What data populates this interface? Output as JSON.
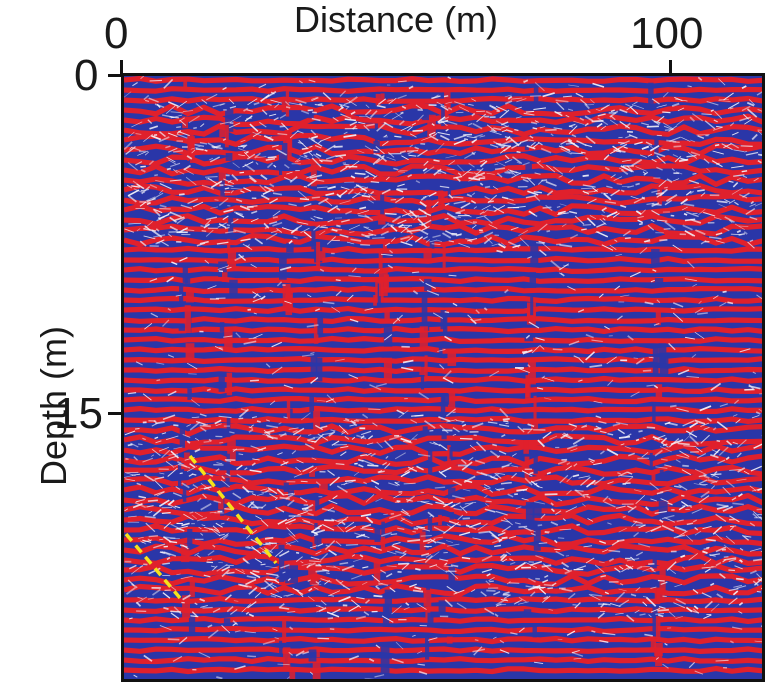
{
  "axes": {
    "x_title": "Distance (m)",
    "x_ticks": [
      "0",
      "100"
    ],
    "y_title": "Depth (m)",
    "y_ticks": [
      "0",
      "15"
    ]
  },
  "colors": {
    "positive": "#e0202c",
    "negative": "#2a36a8",
    "noise": "#f4f4fb",
    "interpreted_fault": "#f5e21a",
    "frame": "#111111"
  }
}
